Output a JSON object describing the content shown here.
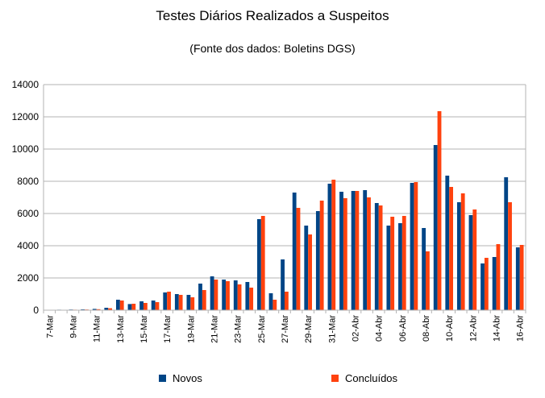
{
  "colors": {
    "novos": "#004586",
    "concluidos": "#ff420e",
    "grid": "#b3b3b3"
  },
  "chart_data": {
    "type": "bar",
    "title": "Testes Diários Realizados a Suspeitos",
    "subtitle": "(Fonte dos dados: Boletins DGS)",
    "xlabel": "",
    "ylabel": "",
    "ylim": [
      0,
      14000
    ],
    "yticks": [
      0,
      2000,
      4000,
      6000,
      8000,
      10000,
      12000,
      14000
    ],
    "grid": true,
    "legend_position": "bottom",
    "categories": [
      "7-Mar",
      "8-Mar",
      "9-Mar",
      "10-Mar",
      "11-Mar",
      "12-Mar",
      "13-Mar",
      "14-Mar",
      "15-Mar",
      "16-Mar",
      "17-Mar",
      "18-Mar",
      "19-Mar",
      "20-Mar",
      "21-Mar",
      "22-Mar",
      "23-Mar",
      "24-Mar",
      "25-Mar",
      "26-Mar",
      "27-Mar",
      "28-Mar",
      "29-Mar",
      "30-Mar",
      "31-Mar",
      "01-Abr",
      "02-Abr",
      "03-Abr",
      "04-Abr",
      "05-Abr",
      "06-Abr",
      "07-Abr",
      "08-Abr",
      "09-Abr",
      "10-Abr",
      "11-Abr",
      "12-Abr",
      "13-Abr",
      "14-Abr",
      "15-Abr",
      "16-Abr"
    ],
    "tick_labels": [
      "7-Mar",
      "",
      "9-Mar",
      "",
      "11-Mar",
      "",
      "13-Mar",
      "",
      "15-Mar",
      "",
      "17-Mar",
      "",
      "19-Mar",
      "",
      "21-Mar",
      "",
      "23-Mar",
      "",
      "25-Mar",
      "",
      "27-Mar",
      "",
      "29-Mar",
      "",
      "31-Mar",
      "",
      "02-Abr",
      "",
      "04-Abr",
      "",
      "06-Abr",
      "",
      "08-Abr",
      "",
      "10-Abr",
      "",
      "12-Abr",
      "",
      "14-Abr",
      "",
      "16-Abr"
    ],
    "series": [
      {
        "name": "Novos",
        "values": [
          20,
          30,
          40,
          50,
          80,
          150,
          650,
          380,
          550,
          600,
          1100,
          1000,
          950,
          1650,
          2100,
          1900,
          1850,
          1750,
          5650,
          1050,
          3150,
          7300,
          5250,
          6150,
          7850,
          7350,
          7400,
          7450,
          6650,
          5250,
          5400,
          7900,
          5100,
          10250,
          8350,
          6700,
          5900,
          2900,
          3300,
          8250,
          3900
        ]
      },
      {
        "name": "Concluídos",
        "values": [
          10,
          20,
          30,
          40,
          60,
          120,
          600,
          400,
          450,
          500,
          1150,
          950,
          800,
          1250,
          1900,
          1800,
          1600,
          1400,
          5850,
          650,
          1150,
          6350,
          4700,
          6800,
          8100,
          6950,
          7400,
          7000,
          6500,
          5800,
          5850,
          7950,
          3650,
          12350,
          7650,
          7250,
          6250,
          3250,
          4100,
          6700,
          4050
        ]
      }
    ]
  }
}
